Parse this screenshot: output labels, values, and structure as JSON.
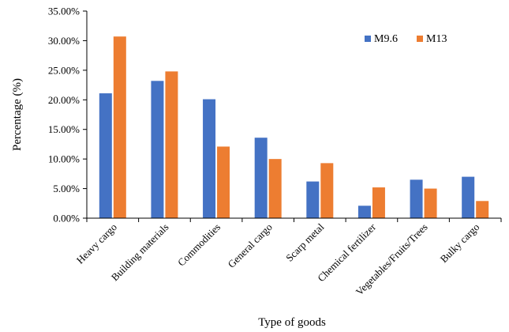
{
  "chart_data": {
    "type": "bar",
    "title": "",
    "xlabel": "Type  of goods",
    "ylabel": "Percentage (%)",
    "ylim": [
      0,
      0.35
    ],
    "yticks": [
      0,
      0.05,
      0.1,
      0.15,
      0.2,
      0.25,
      0.3,
      0.35
    ],
    "ytick_labels": [
      "0.00%",
      "5.00%",
      "10.00%",
      "15.00%",
      "20.00%",
      "25.00%",
      "30.00%",
      "35.00%"
    ],
    "categories": [
      "Heavy cargo",
      "Building materials",
      "Commodities",
      "General cargo",
      "Scarp metal",
      "Chemical fertilizer",
      "Vegetables/Fruits/Trees",
      "Bulky cargo"
    ],
    "series": [
      {
        "name": "M9.6",
        "color": "#4472C4",
        "values": [
          0.211,
          0.232,
          0.201,
          0.136,
          0.062,
          0.021,
          0.065,
          0.07
        ]
      },
      {
        "name": "M13",
        "color": "#ED7D31",
        "values": [
          0.307,
          0.248,
          0.121,
          0.1,
          0.093,
          0.052,
          0.05,
          0.029
        ]
      }
    ],
    "legend_position": "top-right",
    "grid": false
  }
}
